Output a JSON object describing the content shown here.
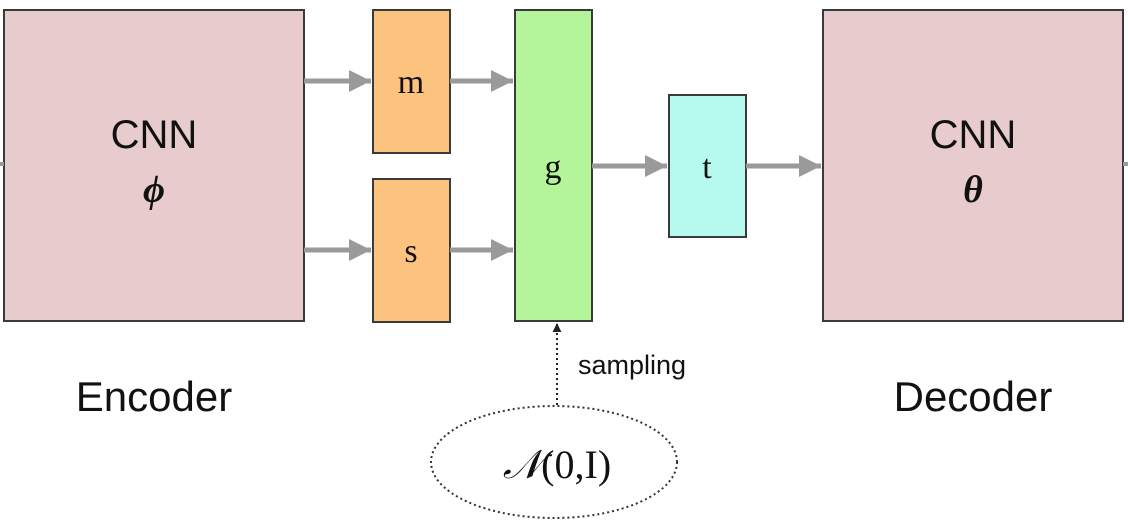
{
  "colors": {
    "encoder_fill": "#e8cccd",
    "decoder_fill": "#e8cccd",
    "m_fill": "#fcc37f",
    "s_fill": "#fcc37f",
    "g_fill": "#b5f59a",
    "t_fill": "#b5f9ef",
    "arrow": "#9a9a9a",
    "stroke": "#3a3a3a"
  },
  "encoder": {
    "title": "CNN",
    "param": "ϕ",
    "caption": "Encoder"
  },
  "decoder": {
    "title": "CNN",
    "param": "θ",
    "caption": "Decoder"
  },
  "nodes": {
    "m": "m",
    "s": "s",
    "g": "g",
    "t": "t"
  },
  "sampling": {
    "label": "sampling",
    "distribution_symbol": "𝒩",
    "distribution_args": "(0,I)"
  },
  "icons": {
    "arrow_head": "triangle-arrowhead",
    "dotted_arrow": "dotted-up-arrow"
  }
}
